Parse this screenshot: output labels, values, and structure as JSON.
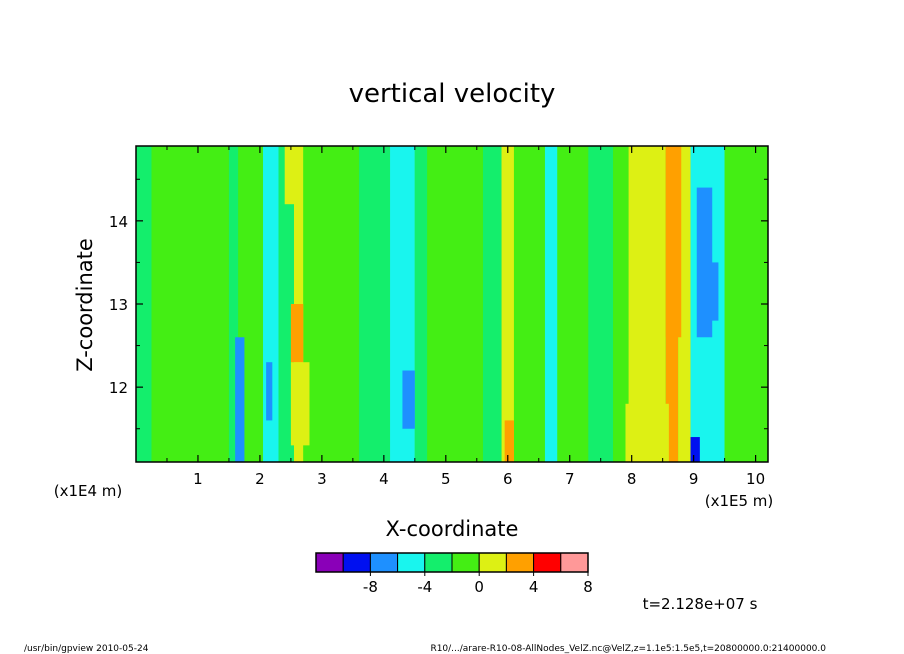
{
  "chart_data": {
    "type": "heatmap",
    "title": "vertical velocity",
    "xlabel": "X-coordinate",
    "ylabel": "Z-coordinate",
    "x_scale_note": "(x1E5 m)",
    "y_scale_note": "(x1E4 m)",
    "xlim": [
      0,
      10.2
    ],
    "ylim": [
      11.1,
      14.9
    ],
    "x_ticks": [
      "1",
      "2",
      "3",
      "4",
      "5",
      "6",
      "7",
      "8",
      "9",
      "10"
    ],
    "y_ticks": [
      "12",
      "13",
      "14"
    ],
    "time_label": "t=2.128e+07 s",
    "colorbar": {
      "colors": [
        "#8a00b8",
        "#0010f0",
        "#1e90ff",
        "#19f5ee",
        "#14ee6c",
        "#44ee14",
        "#ddf014",
        "#ffa000",
        "#ff0000",
        "#ff9898"
      ],
      "tick_labels": [
        "-8",
        "-4",
        "0",
        "4",
        "8"
      ]
    },
    "bands": [
      {
        "x0": 0.0,
        "x1": 0.25,
        "level": 4
      },
      {
        "x0": 0.25,
        "x1": 1.5,
        "level": 5
      },
      {
        "x0": 1.5,
        "x1": 1.65,
        "level": 4
      },
      {
        "x0": 1.65,
        "x1": 2.05,
        "level": 5
      },
      {
        "x0": 2.05,
        "x1": 2.3,
        "level": 3
      },
      {
        "x0": 2.3,
        "x1": 2.55,
        "level": 4
      },
      {
        "x0": 2.55,
        "x1": 2.7,
        "level": 6
      },
      {
        "x0": 2.7,
        "x1": 3.6,
        "level": 5
      },
      {
        "x0": 3.6,
        "x1": 4.1,
        "level": 4
      },
      {
        "x0": 4.1,
        "x1": 4.5,
        "level": 3
      },
      {
        "x0": 4.5,
        "x1": 4.7,
        "level": 4
      },
      {
        "x0": 4.7,
        "x1": 5.6,
        "level": 5
      },
      {
        "x0": 5.6,
        "x1": 5.9,
        "level": 4
      },
      {
        "x0": 5.9,
        "x1": 6.1,
        "level": 6
      },
      {
        "x0": 6.1,
        "x1": 6.6,
        "level": 5
      },
      {
        "x0": 6.6,
        "x1": 6.8,
        "level": 3
      },
      {
        "x0": 6.8,
        "x1": 7.3,
        "level": 5
      },
      {
        "x0": 7.3,
        "x1": 7.7,
        "level": 4
      },
      {
        "x0": 7.7,
        "x1": 7.95,
        "level": 5
      },
      {
        "x0": 7.95,
        "x1": 8.55,
        "level": 6
      },
      {
        "x0": 8.55,
        "x1": 8.75,
        "level": 7
      },
      {
        "x0": 8.75,
        "x1": 8.95,
        "level": 6
      },
      {
        "x0": 8.95,
        "x1": 9.5,
        "level": 3
      },
      {
        "x0": 9.5,
        "x1": 10.2,
        "level": 5
      }
    ],
    "patches": [
      {
        "x0": 1.6,
        "x1": 1.75,
        "y0": 11.1,
        "y1": 12.6,
        "level": 2
      },
      {
        "x0": 2.1,
        "x1": 2.2,
        "y0": 11.6,
        "y1": 12.3,
        "level": 2
      },
      {
        "x0": 2.5,
        "x1": 2.7,
        "y0": 12.3,
        "y1": 13.0,
        "level": 7
      },
      {
        "x0": 2.5,
        "x1": 2.8,
        "y0": 11.3,
        "y1": 12.3,
        "level": 6
      },
      {
        "x0": 2.4,
        "x1": 2.6,
        "y0": 14.2,
        "y1": 14.9,
        "level": 6
      },
      {
        "x0": 4.3,
        "x1": 4.5,
        "y0": 11.5,
        "y1": 12.2,
        "level": 2
      },
      {
        "x0": 5.95,
        "x1": 6.1,
        "y0": 11.1,
        "y1": 11.6,
        "level": 7
      },
      {
        "x0": 5.9,
        "x1": 6.05,
        "y0": 14.1,
        "y1": 14.9,
        "level": 6
      },
      {
        "x0": 7.9,
        "x1": 8.6,
        "y0": 11.1,
        "y1": 11.8,
        "level": 6
      },
      {
        "x0": 8.55,
        "x1": 8.8,
        "y0": 12.6,
        "y1": 14.9,
        "level": 7
      },
      {
        "x0": 9.05,
        "x1": 9.3,
        "y0": 12.6,
        "y1": 14.4,
        "level": 2
      },
      {
        "x0": 9.25,
        "x1": 9.4,
        "y0": 12.8,
        "y1": 13.5,
        "level": 2
      },
      {
        "x0": 8.95,
        "x1": 9.1,
        "y0": 11.1,
        "y1": 11.4,
        "level": 1
      }
    ]
  },
  "footer": {
    "left": "/usr/bin/gpview   2010-05-24",
    "right": "R10/.../arare-R10-08-AllNodes_VelZ.nc@VelZ,z=1.1e5:1.5e5,t=20800000.0:21400000.0"
  }
}
